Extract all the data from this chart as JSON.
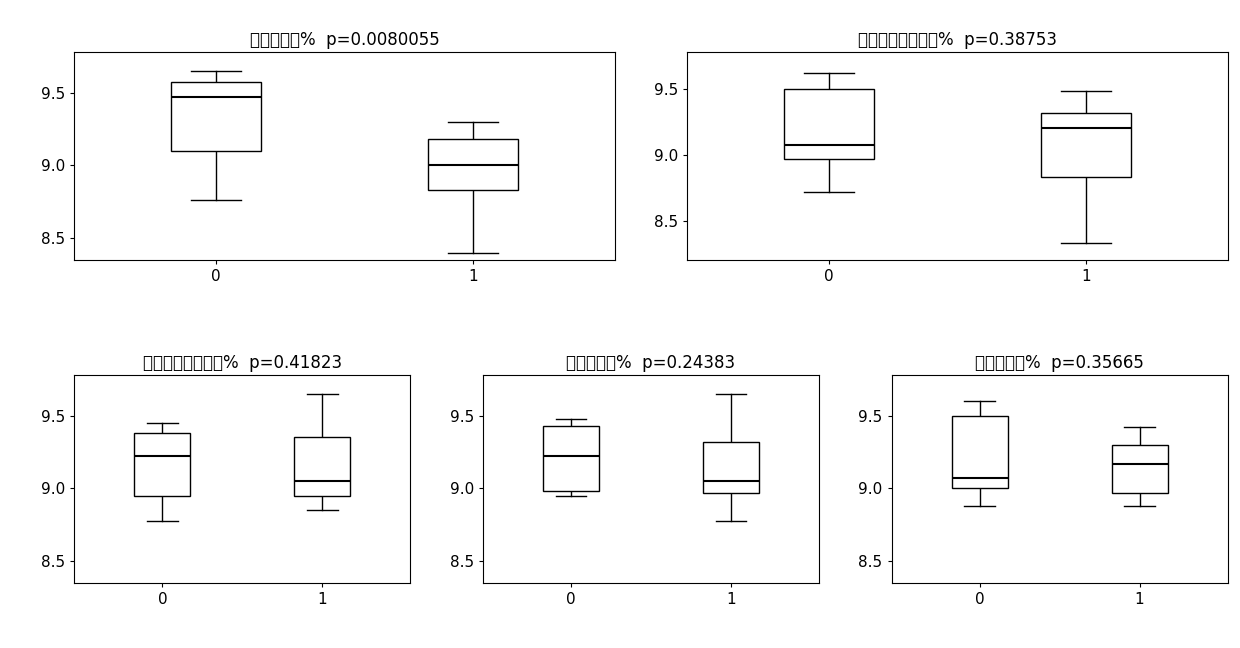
{
  "panels": [
    {
      "title": "助燃剂含量%  p=0.0080055",
      "groups": [
        {
          "label": "0",
          "whislo": 8.76,
          "q1": 9.1,
          "med": 9.47,
          "q3": 9.57,
          "whishi": 9.65
        },
        {
          "label": "1",
          "whislo": 8.4,
          "q1": 8.83,
          "med": 9.0,
          "q3": 9.18,
          "whishi": 9.3
        }
      ],
      "ylim": [
        8.35,
        9.78
      ],
      "yticks": [
        8.5,
        9.0,
        9.5
      ]
    },
    {
      "title": "柠檬酸根离子含量%  p=0.38753",
      "groups": [
        {
          "label": "0",
          "whislo": 8.72,
          "q1": 8.97,
          "med": 9.07,
          "q3": 9.5,
          "whishi": 9.62
        },
        {
          "label": "1",
          "whislo": 8.33,
          "q1": 8.83,
          "med": 9.2,
          "q3": 9.32,
          "whishi": 9.48
        }
      ],
      "ylim": [
        8.2,
        9.78
      ],
      "yticks": [
        8.5,
        9.0,
        9.5
      ]
    },
    {
      "title": "苹果酸根离子含量%  p=0.41823",
      "groups": [
        {
          "label": "0",
          "whislo": 8.78,
          "q1": 8.95,
          "med": 9.22,
          "q3": 9.38,
          "whishi": 9.45
        },
        {
          "label": "1",
          "whislo": 8.85,
          "q1": 8.95,
          "med": 9.05,
          "q3": 9.35,
          "whishi": 9.65
        }
      ],
      "ylim": [
        8.35,
        9.78
      ],
      "yticks": [
        8.5,
        9.0,
        9.5
      ]
    },
    {
      "title": "钒离子含量%  p=0.24383",
      "groups": [
        {
          "label": "0",
          "whislo": 8.95,
          "q1": 8.98,
          "med": 9.22,
          "q3": 9.43,
          "whishi": 9.48
        },
        {
          "label": "1",
          "whislo": 8.78,
          "q1": 8.97,
          "med": 9.05,
          "q3": 9.32,
          "whishi": 9.65
        }
      ],
      "ylim": [
        8.35,
        9.78
      ],
      "yticks": [
        8.5,
        9.0,
        9.5
      ]
    },
    {
      "title": "钓离子含量%  p=0.35665",
      "groups": [
        {
          "label": "0",
          "whislo": 8.88,
          "q1": 9.0,
          "med": 9.07,
          "q3": 9.5,
          "whishi": 9.6
        },
        {
          "label": "1",
          "whislo": 8.88,
          "q1": 8.97,
          "med": 9.17,
          "q3": 9.3,
          "whishi": 9.42
        }
      ],
      "ylim": [
        8.35,
        9.78
      ],
      "yticks": [
        8.5,
        9.0,
        9.5
      ]
    }
  ],
  "background_color": "#ffffff",
  "box_color": "white",
  "median_color": "black",
  "whisker_color": "black",
  "cap_color": "black",
  "box_edgecolor": "black",
  "title_fontsize": 12,
  "tick_fontsize": 11
}
